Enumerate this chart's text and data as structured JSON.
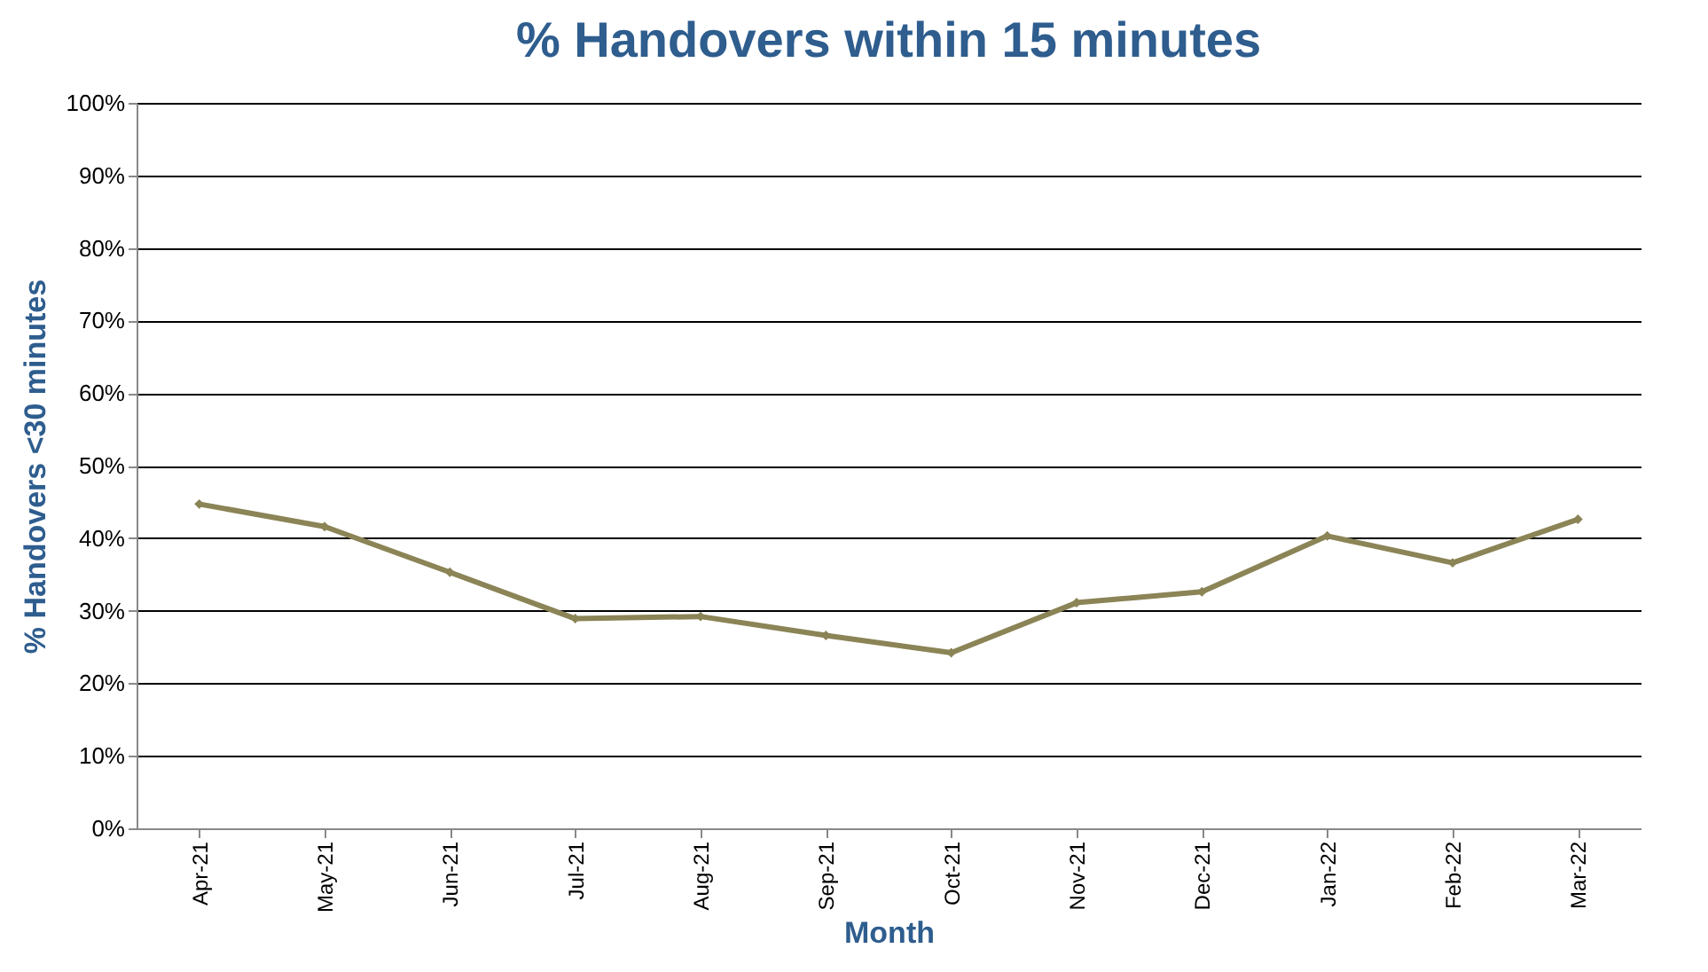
{
  "chart_data": {
    "type": "line",
    "title": "% Handovers within 15 minutes",
    "xlabel": "Month",
    "ylabel": "% Handovers <30 minutes",
    "categories": [
      "Apr-21",
      "May-21",
      "Jun-21",
      "Jul-21",
      "Aug-21",
      "Sep-21",
      "Oct-21",
      "Nov-21",
      "Dec-21",
      "Jan-22",
      "Feb-22",
      "Mar-22"
    ],
    "series": [
      {
        "color": "#8b8456",
        "values": [
          44.7,
          41.6,
          35.3,
          28.9,
          29.2,
          26.6,
          24.2,
          31.1,
          32.6,
          40.3,
          36.6,
          42.6
        ]
      }
    ],
    "ylim": [
      0,
      100
    ],
    "yticks": [
      {
        "value": 0,
        "label": "0%"
      },
      {
        "value": 10,
        "label": "10%"
      },
      {
        "value": 20,
        "label": "20%"
      },
      {
        "value": 30,
        "label": "30%"
      },
      {
        "value": 40,
        "label": "40%"
      },
      {
        "value": 50,
        "label": "50%"
      },
      {
        "value": 60,
        "label": "60%"
      },
      {
        "value": 70,
        "label": "70%"
      },
      {
        "value": 80,
        "label": "80%"
      },
      {
        "value": 90,
        "label": "90%"
      },
      {
        "value": 100,
        "label": "100%"
      }
    ],
    "grid": "y",
    "marker": "diamond",
    "line_style": "solid",
    "legend": false
  }
}
